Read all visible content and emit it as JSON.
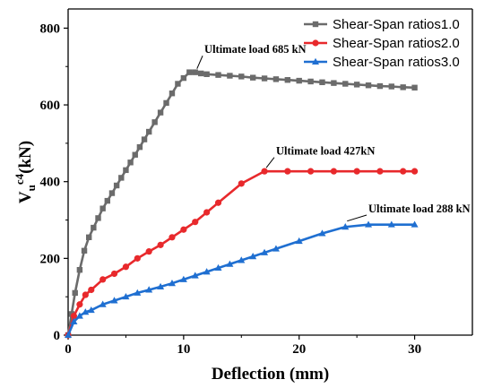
{
  "chart_data": {
    "type": "line",
    "xlabel": "Deflection (mm)",
    "ylabel": {
      "main": "V",
      "sub": "u",
      "sup": "c4",
      "rest": "(kN)"
    },
    "xlim": [
      0,
      35
    ],
    "ylim": [
      0,
      850
    ],
    "xticks": [
      0,
      10,
      20,
      30
    ],
    "yticks": [
      0,
      200,
      400,
      600,
      800
    ],
    "legend_position": "top-right",
    "grid": false,
    "series": [
      {
        "name": "Shear-Span ratios1.0",
        "color": "#6b6b6b",
        "marker": "square",
        "x": [
          0,
          0.3,
          0.6,
          1.0,
          1.4,
          1.8,
          2.2,
          2.6,
          3.0,
          3.4,
          3.8,
          4.2,
          4.6,
          5.0,
          5.4,
          5.8,
          6.2,
          6.6,
          7.0,
          7.5,
          8.0,
          8.5,
          9.0,
          9.5,
          10.0,
          10.5,
          11.0,
          11.5,
          12.0,
          13,
          14,
          15,
          16,
          17,
          18,
          19,
          20,
          21,
          22,
          23,
          24,
          25,
          26,
          27,
          28,
          29,
          30
        ],
        "y": [
          0,
          55,
          110,
          170,
          220,
          255,
          280,
          305,
          330,
          350,
          370,
          390,
          410,
          430,
          450,
          470,
          490,
          510,
          530,
          555,
          580,
          605,
          630,
          655,
          670,
          685,
          685,
          682,
          680,
          678,
          676,
          674,
          671,
          669,
          667,
          665,
          663,
          661,
          659,
          657,
          655,
          653,
          651,
          649,
          648,
          646,
          645
        ]
      },
      {
        "name": "Shear-Span ratios2.0",
        "color": "#e8292c",
        "marker": "circle",
        "x": [
          0,
          0.5,
          1.0,
          1.5,
          2.0,
          3.0,
          4.0,
          5.0,
          6.0,
          7.0,
          8.0,
          9.0,
          10.0,
          11.0,
          12.0,
          13.0,
          15.0,
          17.0,
          19.0,
          21.0,
          23.0,
          25.0,
          27.0,
          29.0,
          30.0
        ],
        "y": [
          0,
          50,
          80,
          105,
          118,
          145,
          160,
          178,
          200,
          218,
          235,
          255,
          275,
          295,
          320,
          345,
          395,
          427,
          427,
          427,
          427,
          427,
          427,
          427,
          427
        ]
      },
      {
        "name": "Shear-Span ratios3.0",
        "color": "#1f6fd1",
        "marker": "triangle",
        "x": [
          0,
          0.5,
          1.0,
          1.5,
          2.0,
          3.0,
          4.0,
          5.0,
          6.0,
          7.0,
          8.0,
          9.0,
          10.0,
          11.0,
          12.0,
          13.0,
          14.0,
          15.0,
          16.0,
          17.0,
          18.0,
          20.0,
          22.0,
          24.0,
          26.0,
          28.0,
          30.0
        ],
        "y": [
          0,
          35,
          50,
          60,
          65,
          80,
          90,
          100,
          110,
          118,
          126,
          135,
          145,
          155,
          165,
          175,
          185,
          195,
          205,
          215,
          225,
          245,
          265,
          282,
          288,
          288,
          288
        ]
      }
    ],
    "annotations": [
      {
        "text": "Ultimate load 685 kN",
        "x": 11.0,
        "y": 685,
        "label_x": 11.8,
        "label_y": 735
      },
      {
        "text": "Ultimate load 427kN",
        "x": 17.0,
        "y": 427,
        "label_x": 18.0,
        "label_y": 470
      },
      {
        "text": "Ultimate load 288 kN",
        "x": 24.0,
        "y": 288,
        "label_x": 26.0,
        "label_y": 320
      }
    ]
  }
}
